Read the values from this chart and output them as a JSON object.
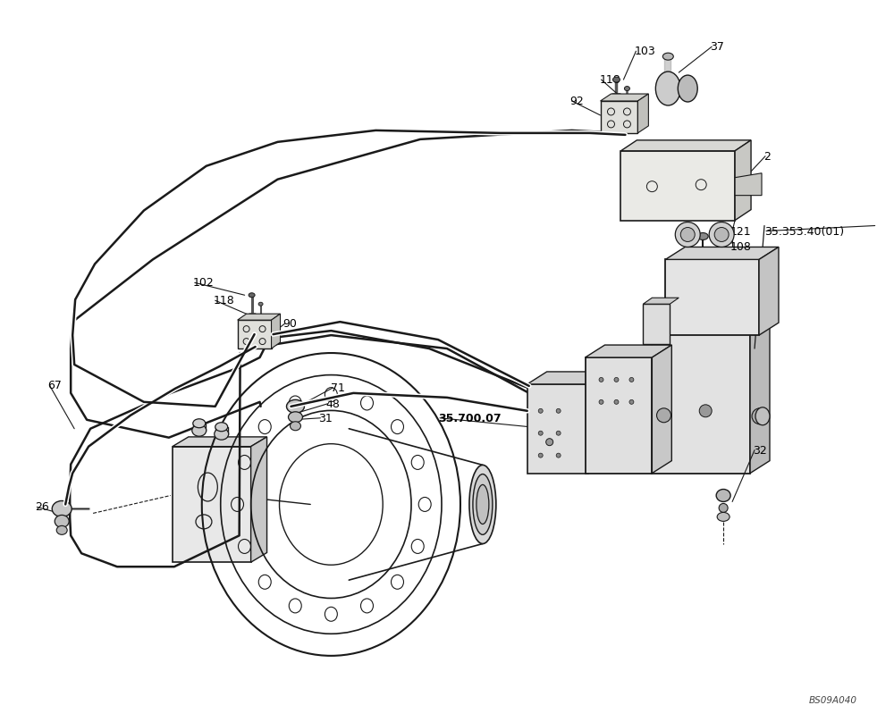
{
  "bg_color": "#ffffff",
  "line_color": "#1a1a1a",
  "text_color": "#000000",
  "fig_width": 10.0,
  "fig_height": 8.08,
  "watermark": "BS09A040"
}
